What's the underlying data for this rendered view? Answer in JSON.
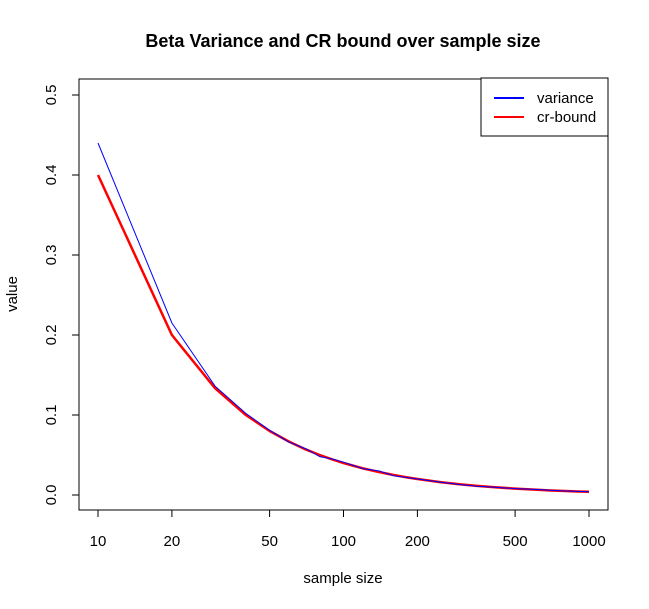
{
  "chart_data": {
    "type": "line",
    "title": "Beta Variance and CR bound over sample size",
    "xlabel": "sample size",
    "ylabel": "value",
    "x_scale": "log",
    "xlim": [
      10,
      1000
    ],
    "ylim": [
      0,
      0.5
    ],
    "x_ticks": [
      10,
      20,
      50,
      100,
      200,
      500,
      1000
    ],
    "x_tick_labels": [
      "10",
      "20",
      "50",
      "100",
      "200",
      "500",
      "1000"
    ],
    "y_ticks": [
      0,
      0.1,
      0.2,
      0.3,
      0.4,
      0.5
    ],
    "y_tick_labels": [
      "0.0",
      "0.1",
      "0.2",
      "0.3",
      "0.4",
      "0.5"
    ],
    "legend_position": "top-right",
    "grid": false,
    "series": [
      {
        "name": "variance",
        "color": "#0000ff",
        "line_width": 1,
        "x": [
          10,
          20,
          30,
          40,
          50,
          60,
          70,
          80,
          90,
          100,
          120,
          140,
          160,
          180,
          200,
          250,
          300,
          350,
          400,
          500,
          600,
          700,
          800,
          900,
          1000
        ],
        "y": [
          0.44,
          0.215,
          0.136,
          0.102,
          0.081,
          0.066,
          0.058,
          0.048,
          0.045,
          0.041,
          0.033,
          0.03,
          0.024,
          0.022,
          0.02,
          0.016,
          0.013,
          0.011,
          0.01,
          0.008,
          0.007,
          0.006,
          0.005,
          0.0045,
          0.004
        ]
      },
      {
        "name": "cr-bound",
        "color": "#ff0000",
        "line_width": 2.5,
        "x": [
          10,
          20,
          30,
          40,
          50,
          60,
          70,
          80,
          90,
          100,
          120,
          140,
          160,
          180,
          200,
          250,
          300,
          350,
          400,
          500,
          600,
          700,
          800,
          900,
          1000
        ],
        "y": [
          0.4,
          0.2,
          0.1333,
          0.1,
          0.08,
          0.0667,
          0.0571,
          0.05,
          0.0444,
          0.04,
          0.0333,
          0.0286,
          0.025,
          0.0222,
          0.02,
          0.016,
          0.0133,
          0.0114,
          0.01,
          0.008,
          0.0067,
          0.0057,
          0.005,
          0.0044,
          0.004
        ]
      }
    ]
  }
}
